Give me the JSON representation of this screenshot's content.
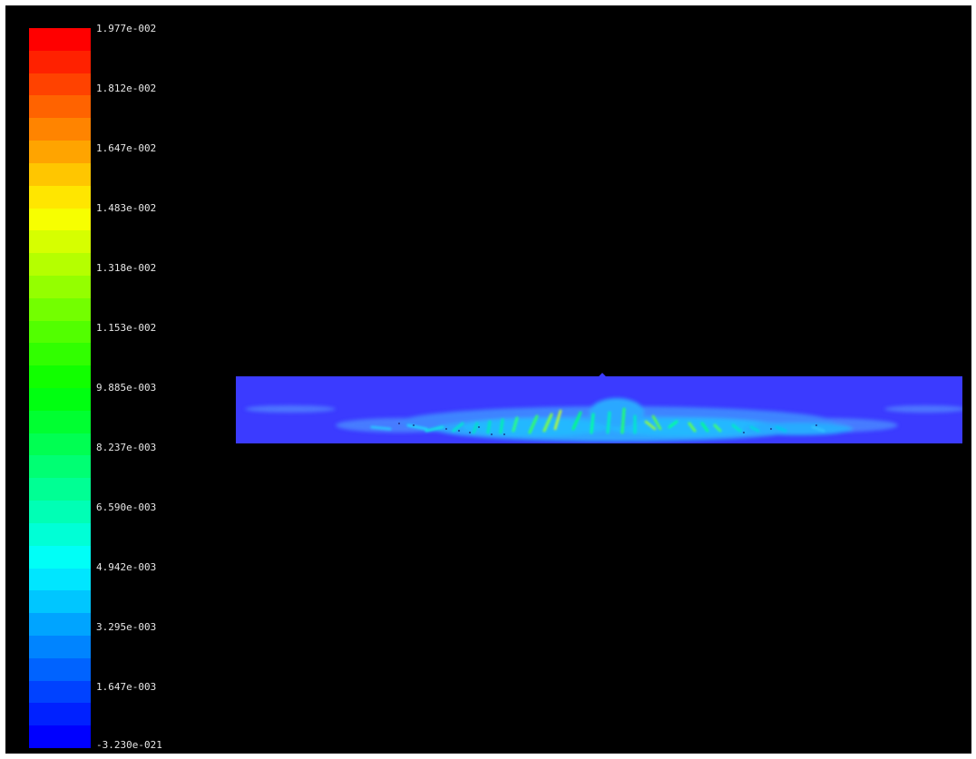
{
  "legend": {
    "labels": [
      "1.977e-002",
      "1.812e-002",
      "1.647e-002",
      "1.483e-002",
      "1.318e-002",
      "1.153e-002",
      "9.885e-003",
      "8.237e-003",
      "6.590e-003",
      "4.942e-003",
      "3.295e-003",
      "1.647e-003",
      "-3.230e-021"
    ],
    "max": 0.01977,
    "min": -3.23e-21,
    "band_count": 32,
    "colormap": "rainbow (blue to red)"
  },
  "plot": {
    "background": "#000000",
    "field_base_color": "#3b3bff"
  }
}
